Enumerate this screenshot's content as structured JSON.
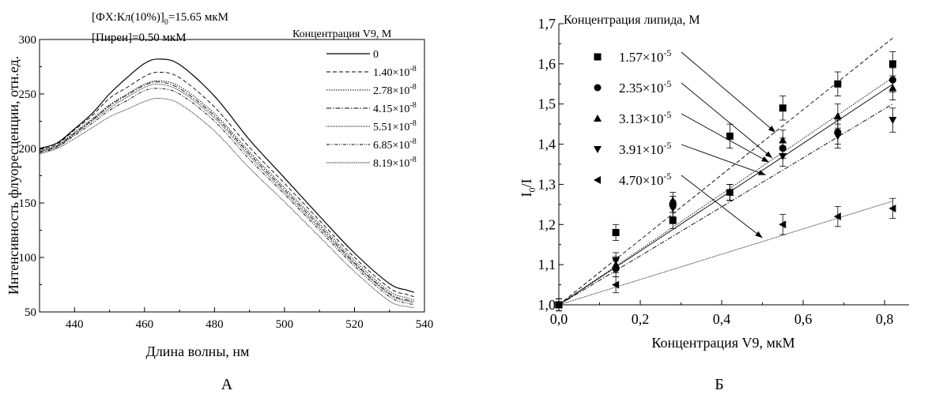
{
  "chart_data": [
    {
      "type": "line",
      "panel_label": "А",
      "xlabel": "Длина волны, нм",
      "ylabel": "Интенсивность флуоресценции, отн.ед.",
      "xlim": [
        430,
        540
      ],
      "ylim": [
        50,
        300
      ],
      "xticks": [
        "440",
        "460",
        "480",
        "500",
        "520",
        "540"
      ],
      "yticks": [
        "50",
        "100",
        "150",
        "200",
        "250",
        "300"
      ],
      "annotations": [
        {
          "prefix": "[ФХ:Кл(10%)]",
          "sub": "0",
          "suffix": "=15.65 мкМ"
        },
        {
          "text": "[Пирен]=0.50 мкМ"
        }
      ],
      "legend_title": "Концентрация V9, М",
      "x": [
        430,
        435,
        440,
        445,
        450,
        455,
        460,
        464,
        470,
        480,
        490,
        500,
        510,
        520,
        530,
        535,
        537
      ],
      "series": [
        {
          "name": "0",
          "mantissa": "",
          "exp": "",
          "dash": "",
          "values": [
            200,
            205,
            218,
            232,
            250,
            265,
            278,
            282,
            277,
            248,
            208,
            173,
            138,
            104,
            76,
            70,
            68
          ]
        },
        {
          "name": "",
          "mantissa": "1.40×10",
          "exp": "-8",
          "dash": "5,3",
          "values": [
            199,
            204,
            217,
            230,
            246,
            256,
            266,
            270,
            265,
            238,
            201,
            168,
            134,
            100,
            72,
            66,
            64
          ]
        },
        {
          "name": "",
          "mantissa": "2.78×10",
          "exp": "-8",
          "dash": "1.5,1.5",
          "values": [
            198,
            203,
            215,
            227,
            240,
            250,
            259,
            262,
            257,
            232,
            197,
            164,
            131,
            97,
            69,
            63,
            61
          ]
        },
        {
          "name": "",
          "mantissa": "4.15×10",
          "exp": "-8",
          "dash": "6,2,1.5,2",
          "values": [
            197,
            202,
            214,
            226,
            239,
            249,
            258,
            261,
            255,
            230,
            195,
            162,
            129,
            95,
            67,
            61,
            60
          ]
        },
        {
          "name": "",
          "mantissa": "5.51×10",
          "exp": "-8",
          "dash": "1,1",
          "values": [
            197,
            202,
            213,
            225,
            237,
            247,
            256,
            259,
            253,
            228,
            193,
            160,
            127,
            94,
            66,
            60,
            59
          ]
        },
        {
          "name": "",
          "mantissa": "6.85×10",
          "exp": "-8",
          "dash": "4,1.5,1,1.5,1,1.5",
          "values": [
            196,
            201,
            212,
            223,
            235,
            244,
            253,
            255,
            250,
            225,
            190,
            158,
            125,
            92,
            64,
            58,
            57
          ]
        },
        {
          "name": "",
          "mantissa": "8.19×10",
          "exp": "-8",
          "dash": "0.8,0.8",
          "values": [
            195,
            200,
            209,
            219,
            229,
            236,
            243,
            246,
            241,
            216,
            182,
            151,
            119,
            87,
            60,
            55,
            54
          ]
        }
      ]
    },
    {
      "type": "scatter",
      "panel_label": "Б",
      "xlabel": "Концентрация V9, мкМ",
      "ylabel_main": "I",
      "ylabel_sub": "0",
      "ylabel_tail": "/I",
      "xlim": [
        0.0,
        0.86
      ],
      "ylim": [
        1.0,
        1.7
      ],
      "xticks": [
        "0,0",
        "0,2",
        "0,4",
        "0,6",
        "0,8"
      ],
      "yticks": [
        "1,0",
        "1,1",
        "1,2",
        "1,3",
        "1,4",
        "1,5",
        "1,6",
        "1,7"
      ],
      "legend_title": "Концентрация липида, М",
      "x": [
        0.0,
        0.14,
        0.28,
        0.42,
        0.55,
        0.685,
        0.82
      ],
      "series": [
        {
          "mantissa": "1.57×10",
          "exp": "-5",
          "marker": "square",
          "fit_dash": "5,3",
          "slope": 0.81,
          "values": [
            1.0,
            1.18,
            1.21,
            1.42,
            1.49,
            1.55,
            1.6
          ],
          "errors": [
            0.015,
            0.02,
            0.02,
            0.03,
            0.03,
            0.03,
            0.03
          ]
        },
        {
          "mantissa": "2.35×10",
          "exp": "-5",
          "marker": "circle",
          "fit_dash": "1.5,1.5",
          "slope": 0.69,
          "values": [
            1.0,
            1.09,
            1.25,
            1.28,
            1.39,
            1.43,
            1.56
          ],
          "errors": [
            0.015,
            0.02,
            0.02,
            0.02,
            0.025,
            0.03,
            0.03
          ]
        },
        {
          "mantissa": "3.13×10",
          "exp": "-5",
          "marker": "triangle-up",
          "fit_dash": "",
          "slope": 0.67,
          "values": [
            1.0,
            1.1,
            1.26,
            1.28,
            1.41,
            1.47,
            1.54
          ],
          "errors": [
            0.015,
            0.02,
            0.02,
            0.02,
            0.025,
            0.03,
            0.03
          ]
        },
        {
          "mantissa": "3.91×10",
          "exp": "-5",
          "marker": "triangle-down",
          "fit_dash": "6,2,1.5,2",
          "slope": 0.61,
          "values": [
            1.0,
            1.11,
            1.24,
            1.28,
            1.37,
            1.42,
            1.46
          ],
          "errors": [
            0.015,
            0.02,
            0.02,
            0.02,
            0.025,
            0.03,
            0.03
          ]
        },
        {
          "mantissa": "4.70×10",
          "exp": "-5",
          "marker": "triangle-left",
          "fit_dash": "0.8,0.8",
          "slope": 0.315,
          "values": [
            1.0,
            1.05,
            1.25,
            1.28,
            1.2,
            1.22,
            1.24
          ],
          "errors": [
            0.015,
            0.02,
            0.02,
            0.02,
            0.025,
            0.025,
            0.025
          ]
        }
      ]
    }
  ]
}
